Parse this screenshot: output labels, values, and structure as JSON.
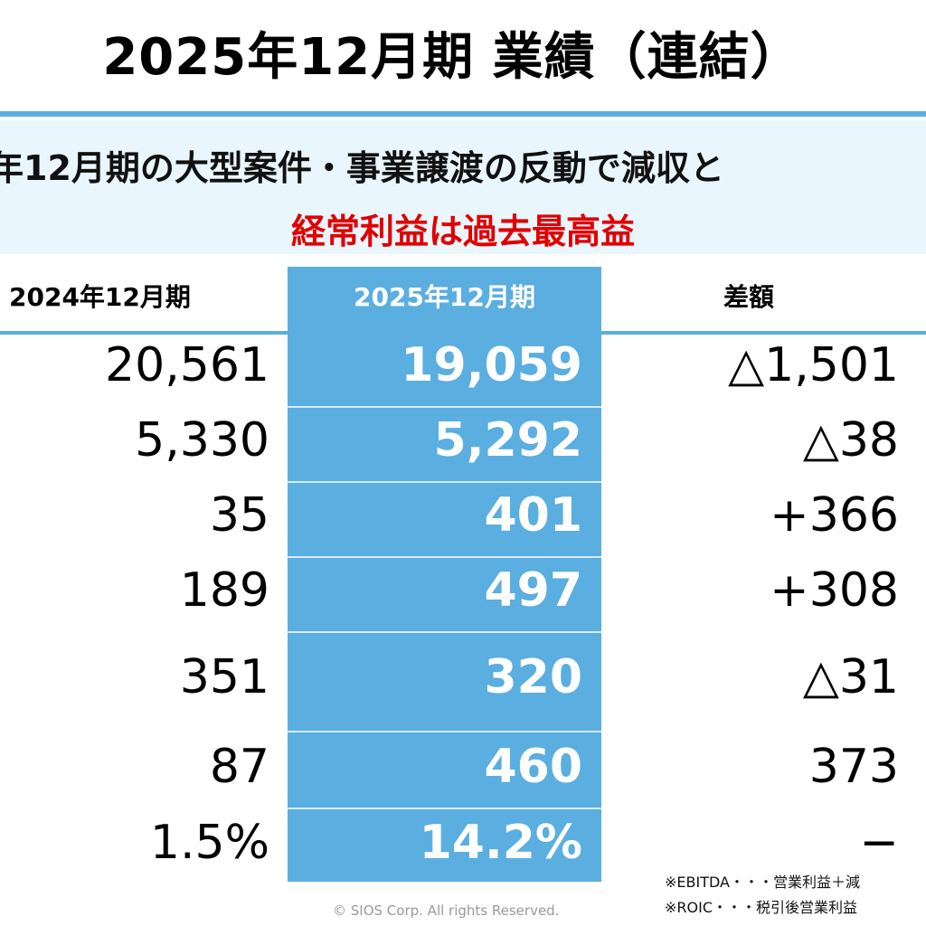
{
  "title": "2025年12月期 業績（連結）",
  "headline": "年12月期の大型案件・事業譲渡の反動で減収と",
  "subline": "経常利益は過去最高益",
  "headers": {
    "prev": "2024年12月期",
    "cur": "2025年12月期",
    "diff": "差額"
  },
  "rows": [
    {
      "prev": "20,561",
      "cur": "19,059",
      "diff": "△1,501"
    },
    {
      "prev": "5,330",
      "cur": "5,292",
      "diff": "△38"
    },
    {
      "prev": "35",
      "cur": "401",
      "diff": "+366"
    },
    {
      "prev": "189",
      "cur": "497",
      "diff": "+308"
    },
    {
      "prev": "351",
      "cur": "320",
      "diff": "△31"
    },
    {
      "prev": "87",
      "cur": "460",
      "diff": "373"
    },
    {
      "prev": "1.5%",
      "cur": "14.2%",
      "diff": "−"
    }
  ],
  "notes": [
    "※EBITDA・・・営業利益＋減",
    "※ROIC・・・税引後営業利益"
  ],
  "footer": "© SIOS Corp. All rights Reserved.",
  "colors": {
    "accent": "#5aaee0",
    "band": "#e9f6fd",
    "highlight_text": "#e00000"
  }
}
